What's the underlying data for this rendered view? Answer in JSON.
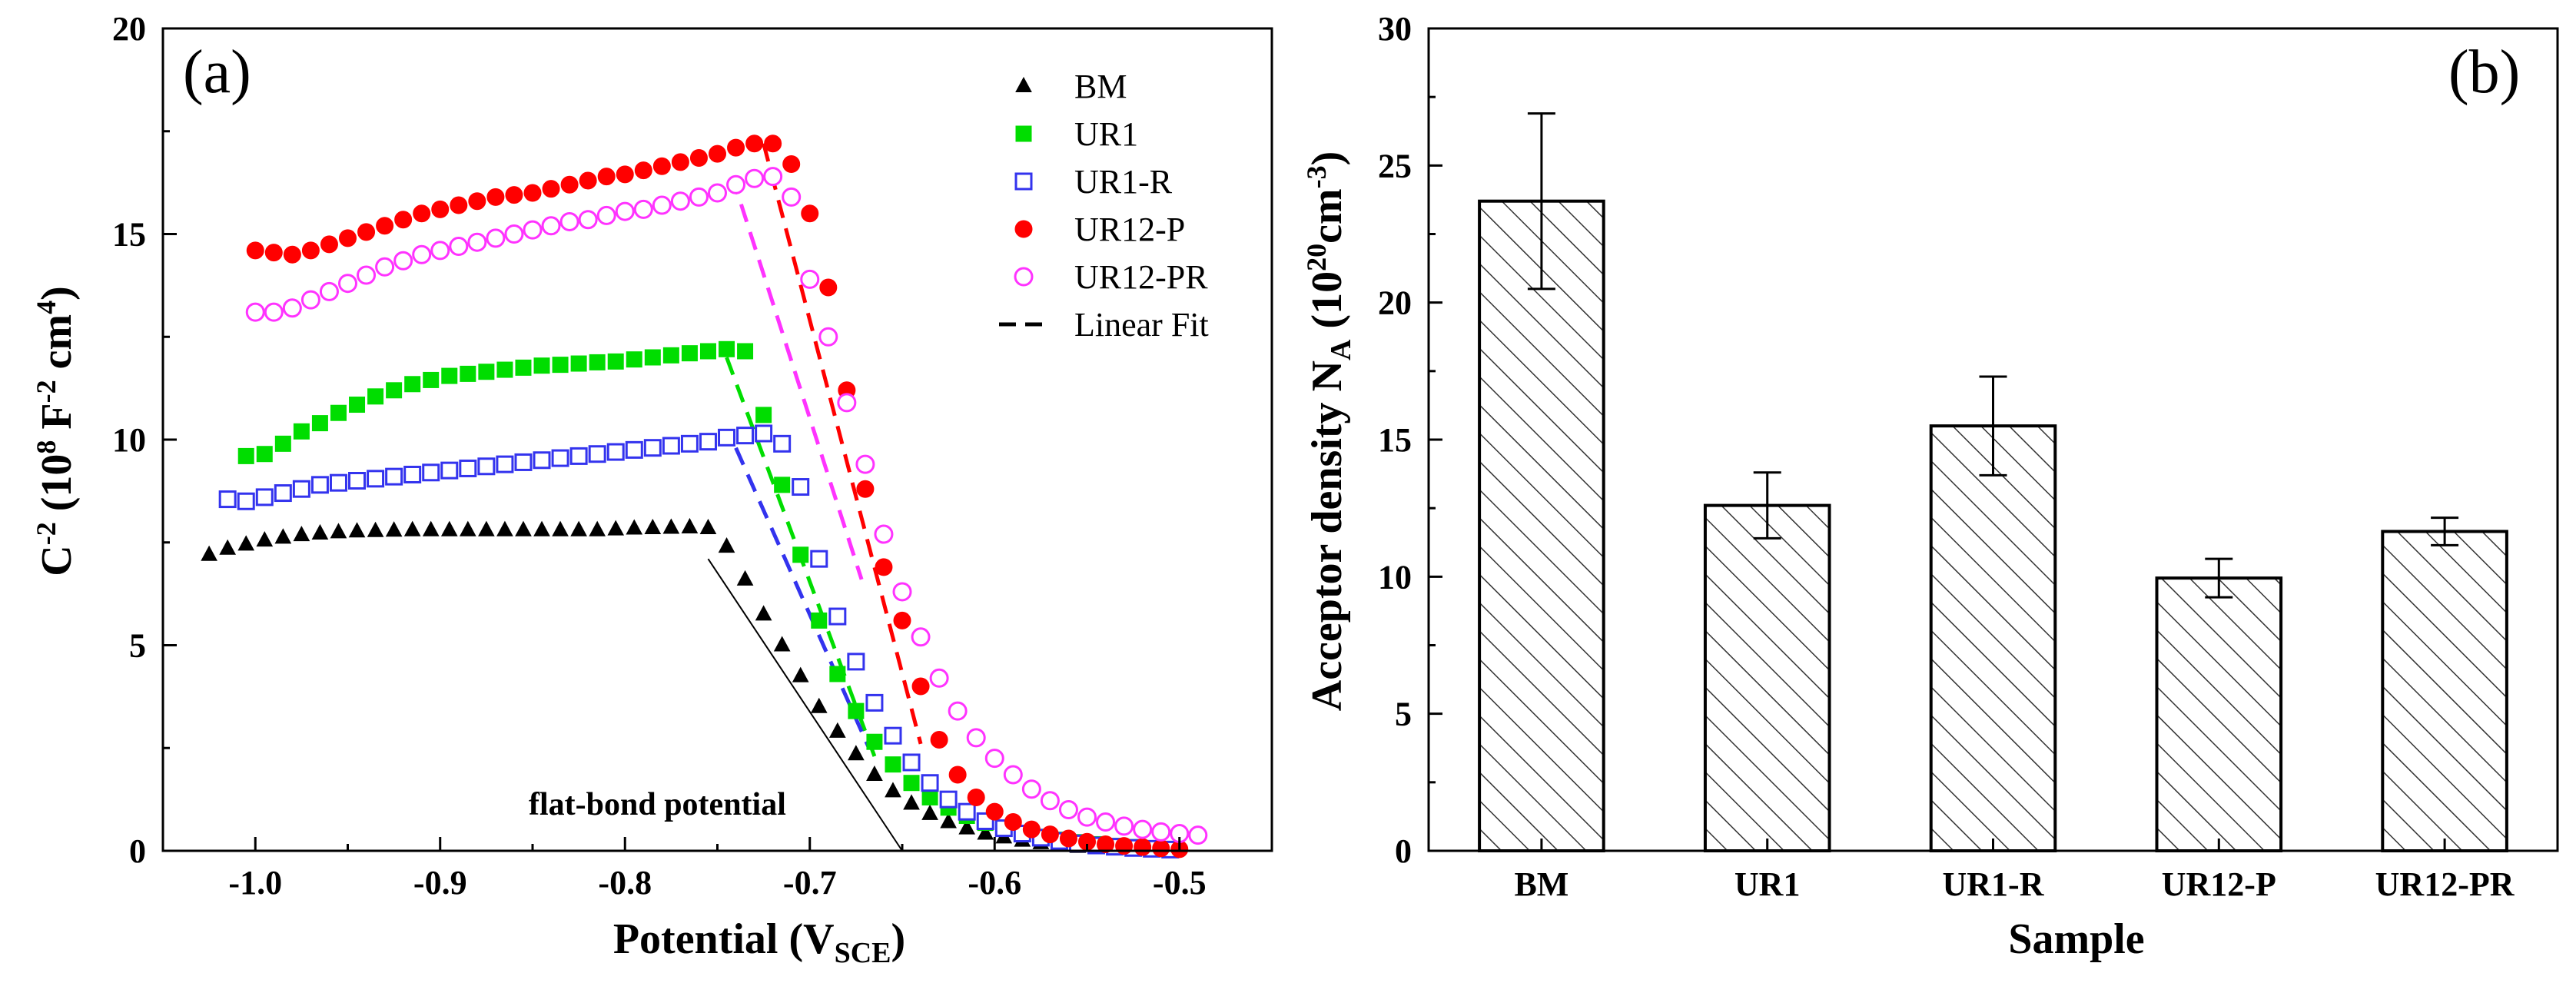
{
  "chart_data": [
    {
      "type": "scatter",
      "panel_label": "(a)",
      "xlabel": {
        "main": "Potential (V",
        "sub": "SCE",
        "tail": ")"
      },
      "ylabel": {
        "p1": "C",
        "s1": "-2",
        "p2": " (10",
        "s2": "8",
        "p3": " F",
        "s3": "-2",
        "p4": " cm",
        "s4": "4",
        "p5": ")"
      },
      "xlim": [
        -1.05,
        -0.45
      ],
      "ylim": [
        0,
        20
      ],
      "xticks": [
        -1.0,
        -0.9,
        -0.8,
        -0.7,
        -0.6,
        -0.5
      ],
      "xtick_labels": [
        "-1.0",
        "-0.9",
        "-0.8",
        "-0.7",
        "-0.6",
        "-0.5"
      ],
      "yticks": [
        0,
        5,
        10,
        15,
        20
      ],
      "ytick_labels": [
        "0",
        "5",
        "10",
        "15",
        "20"
      ],
      "legend_position": "top-right",
      "annotation": "flat-bond potential",
      "series": [
        {
          "name": "BM",
          "marker": "triangle",
          "filled": true,
          "color": "#000000",
          "x": [
            -1.025,
            -1.015,
            -1.005,
            -0.995,
            -0.985,
            -0.975,
            -0.965,
            -0.955,
            -0.945,
            -0.935,
            -0.925,
            -0.915,
            -0.905,
            -0.895,
            -0.885,
            -0.875,
            -0.865,
            -0.855,
            -0.845,
            -0.835,
            -0.825,
            -0.815,
            -0.805,
            -0.795,
            -0.785,
            -0.775,
            -0.765,
            -0.755,
            -0.745,
            -0.735,
            -0.725,
            -0.715,
            -0.705,
            -0.695,
            -0.685,
            -0.675,
            -0.665,
            -0.655,
            -0.645,
            -0.635,
            -0.625,
            -0.615,
            -0.605,
            -0.595,
            -0.585,
            -0.575,
            -0.565,
            -0.555,
            -0.545,
            -0.535,
            -0.525,
            -0.515,
            -0.505
          ],
          "y": [
            7.2,
            7.35,
            7.45,
            7.55,
            7.62,
            7.68,
            7.72,
            7.75,
            7.77,
            7.78,
            7.79,
            7.8,
            7.8,
            7.8,
            7.8,
            7.8,
            7.8,
            7.8,
            7.8,
            7.8,
            7.8,
            7.8,
            7.82,
            7.84,
            7.85,
            7.86,
            7.87,
            7.85,
            7.4,
            6.6,
            5.75,
            5.0,
            4.25,
            3.5,
            2.9,
            2.35,
            1.85,
            1.45,
            1.15,
            0.9,
            0.7,
            0.55,
            0.42,
            0.33,
            0.25,
            0.19,
            0.14,
            0.1,
            0.07,
            0.05,
            0.03,
            0.02,
            0.01
          ]
        },
        {
          "name": "UR1",
          "marker": "square",
          "filled": true,
          "color": "#00dd00",
          "x": [
            -1.005,
            -0.995,
            -0.985,
            -0.975,
            -0.965,
            -0.955,
            -0.945,
            -0.935,
            -0.925,
            -0.915,
            -0.905,
            -0.895,
            -0.885,
            -0.875,
            -0.865,
            -0.855,
            -0.845,
            -0.835,
            -0.825,
            -0.815,
            -0.805,
            -0.795,
            -0.785,
            -0.775,
            -0.765,
            -0.755,
            -0.745,
            -0.735,
            -0.725,
            -0.715,
            -0.705,
            -0.695,
            -0.685,
            -0.675,
            -0.665,
            -0.655,
            -0.645,
            -0.635,
            -0.625,
            -0.615,
            -0.605,
            -0.595,
            -0.585,
            -0.575,
            -0.565,
            -0.555,
            -0.545,
            -0.535,
            -0.525,
            -0.515,
            -0.505
          ],
          "y": [
            9.6,
            9.65,
            9.9,
            10.2,
            10.4,
            10.65,
            10.85,
            11.05,
            11.2,
            11.35,
            11.45,
            11.55,
            11.6,
            11.65,
            11.7,
            11.75,
            11.8,
            11.82,
            11.85,
            11.88,
            11.9,
            11.95,
            12.0,
            12.05,
            12.1,
            12.15,
            12.2,
            12.15,
            10.6,
            8.9,
            7.2,
            5.6,
            4.3,
            3.4,
            2.65,
            2.1,
            1.65,
            1.3,
            1.05,
            0.85,
            0.68,
            0.55,
            0.43,
            0.34,
            0.27,
            0.21,
            0.16,
            0.12,
            0.09,
            0.06,
            0.04
          ]
        },
        {
          "name": "UR1-R",
          "marker": "square",
          "filled": false,
          "color": "#3333ee",
          "x": [
            -1.015,
            -1.005,
            -0.995,
            -0.985,
            -0.975,
            -0.965,
            -0.955,
            -0.945,
            -0.935,
            -0.925,
            -0.915,
            -0.905,
            -0.895,
            -0.885,
            -0.875,
            -0.865,
            -0.855,
            -0.845,
            -0.835,
            -0.825,
            -0.815,
            -0.805,
            -0.795,
            -0.785,
            -0.775,
            -0.765,
            -0.755,
            -0.745,
            -0.735,
            -0.725,
            -0.715,
            -0.705,
            -0.695,
            -0.685,
            -0.675,
            -0.665,
            -0.655,
            -0.645,
            -0.635,
            -0.625,
            -0.615,
            -0.605,
            -0.595,
            -0.585,
            -0.575,
            -0.565,
            -0.555,
            -0.545,
            -0.535,
            -0.525,
            -0.515,
            -0.505
          ],
          "y": [
            8.55,
            8.5,
            8.6,
            8.7,
            8.8,
            8.9,
            8.95,
            9.0,
            9.05,
            9.1,
            9.15,
            9.2,
            9.25,
            9.3,
            9.35,
            9.4,
            9.45,
            9.5,
            9.55,
            9.6,
            9.65,
            9.7,
            9.75,
            9.8,
            9.85,
            9.9,
            9.95,
            10.05,
            10.1,
            10.15,
            9.9,
            8.85,
            7.1,
            5.7,
            4.6,
            3.6,
            2.8,
            2.15,
            1.65,
            1.25,
            0.95,
            0.72,
            0.55,
            0.42,
            0.32,
            0.24,
            0.18,
            0.13,
            0.1,
            0.07,
            0.05,
            0.03
          ]
        },
        {
          "name": "UR12-P",
          "marker": "circle",
          "filled": true,
          "color": "#ff0000",
          "x": [
            -1.0,
            -0.99,
            -0.98,
            -0.97,
            -0.96,
            -0.95,
            -0.94,
            -0.93,
            -0.92,
            -0.91,
            -0.9,
            -0.89,
            -0.88,
            -0.87,
            -0.86,
            -0.85,
            -0.84,
            -0.83,
            -0.82,
            -0.81,
            -0.8,
            -0.79,
            -0.78,
            -0.77,
            -0.76,
            -0.75,
            -0.74,
            -0.73,
            -0.72,
            -0.71,
            -0.7,
            -0.69,
            -0.68,
            -0.67,
            -0.66,
            -0.65,
            -0.64,
            -0.63,
            -0.62,
            -0.61,
            -0.6,
            -0.59,
            -0.58,
            -0.57,
            -0.56,
            -0.55,
            -0.54,
            -0.53,
            -0.52,
            -0.51,
            -0.5
          ],
          "y": [
            14.6,
            14.55,
            14.5,
            14.6,
            14.75,
            14.9,
            15.05,
            15.2,
            15.35,
            15.5,
            15.6,
            15.7,
            15.8,
            15.9,
            15.95,
            16.0,
            16.1,
            16.2,
            16.3,
            16.4,
            16.45,
            16.55,
            16.65,
            16.75,
            16.85,
            16.95,
            17.1,
            17.2,
            17.2,
            16.7,
            15.5,
            13.7,
            11.2,
            8.8,
            6.9,
            5.6,
            4.0,
            2.7,
            1.85,
            1.3,
            0.95,
            0.7,
            0.52,
            0.4,
            0.3,
            0.22,
            0.16,
            0.12,
            0.09,
            0.06,
            0.04
          ]
        },
        {
          "name": "UR12-PR",
          "marker": "circle",
          "filled": false,
          "color": "#ff33ff",
          "x": [
            -1.0,
            -0.99,
            -0.98,
            -0.97,
            -0.96,
            -0.95,
            -0.94,
            -0.93,
            -0.92,
            -0.91,
            -0.9,
            -0.89,
            -0.88,
            -0.87,
            -0.86,
            -0.85,
            -0.84,
            -0.83,
            -0.82,
            -0.81,
            -0.8,
            -0.79,
            -0.78,
            -0.77,
            -0.76,
            -0.75,
            -0.74,
            -0.73,
            -0.72,
            -0.71,
            -0.7,
            -0.69,
            -0.68,
            -0.67,
            -0.66,
            -0.65,
            -0.64,
            -0.63,
            -0.62,
            -0.61,
            -0.6,
            -0.59,
            -0.58,
            -0.57,
            -0.56,
            -0.55,
            -0.54,
            -0.53,
            -0.52,
            -0.51,
            -0.5,
            -0.49
          ],
          "y": [
            13.1,
            13.1,
            13.2,
            13.4,
            13.6,
            13.8,
            14.0,
            14.2,
            14.35,
            14.5,
            14.6,
            14.7,
            14.8,
            14.9,
            15.0,
            15.1,
            15.2,
            15.3,
            15.35,
            15.45,
            15.55,
            15.6,
            15.7,
            15.8,
            15.9,
            16.0,
            16.2,
            16.35,
            16.4,
            15.9,
            13.9,
            12.5,
            10.9,
            9.4,
            7.7,
            6.3,
            5.2,
            4.2,
            3.4,
            2.75,
            2.25,
            1.85,
            1.5,
            1.22,
            1.0,
            0.82,
            0.7,
            0.6,
            0.52,
            0.46,
            0.42,
            0.38
          ]
        }
      ],
      "fit_lines": [
        {
          "name": "Linear Fit",
          "color": "#000000",
          "x": [
            -0.755,
            -0.65
          ],
          "y": [
            7.1,
            0.0
          ]
        },
        {
          "color": "#00dd00",
          "x": [
            -0.745,
            -0.665
          ],
          "y": [
            12.0,
            2.3
          ]
        },
        {
          "color": "#3333ee",
          "x": [
            -0.74,
            -0.668
          ],
          "y": [
            9.8,
            2.5
          ]
        },
        {
          "color": "#ff0000",
          "x": [
            -0.725,
            -0.64
          ],
          "y": [
            17.2,
            2.6
          ]
        },
        {
          "color": "#ff33ff",
          "x": [
            -0.742,
            -0.672
          ],
          "y": [
            16.4,
            6.6
          ]
        }
      ],
      "legend": [
        {
          "label": "BM",
          "ref": 0
        },
        {
          "label": "UR1",
          "ref": 1
        },
        {
          "label": "UR1-R",
          "ref": 2
        },
        {
          "label": "UR12-P",
          "ref": 3
        },
        {
          "label": "UR12-PR",
          "ref": 4
        },
        {
          "label": "Linear Fit",
          "ref": "fit"
        }
      ]
    },
    {
      "type": "bar",
      "panel_label": "(b)",
      "xlabel": "Sample",
      "ylabel": {
        "p1": "Acceptor density N",
        "s1": "A",
        "p2": " (10",
        "s2": "20",
        "p3": "cm",
        "s3": "-3",
        "p4": ")"
      },
      "categories": [
        "BM",
        "UR1",
        "UR1-R",
        "UR12-P",
        "UR12-PR"
      ],
      "values": [
        23.7,
        12.6,
        15.5,
        9.95,
        11.65
      ],
      "errors": [
        3.2,
        1.2,
        1.8,
        0.7,
        0.5
      ],
      "ylim": [
        0,
        30
      ],
      "yticks": [
        0,
        5,
        10,
        15,
        20,
        25,
        30
      ],
      "ytick_labels": [
        "0",
        "5",
        "10",
        "15",
        "20",
        "25",
        "30"
      ],
      "fill": "hatched",
      "grid": false
    }
  ]
}
